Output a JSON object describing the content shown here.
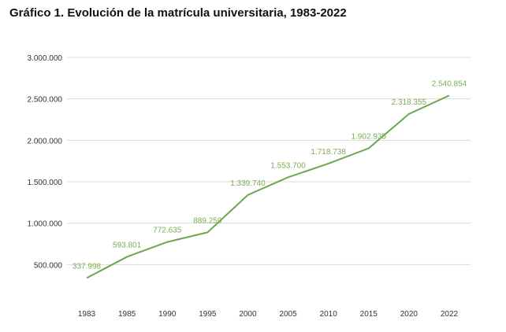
{
  "chart_data": {
    "type": "line",
    "title": "Gráfico 1. Evolución de la matrícula universitaria, 1983-2022",
    "xlabel": "",
    "ylabel": "",
    "categories": [
      "1983",
      "1985",
      "1990",
      "1995",
      "2000",
      "2005",
      "2010",
      "2015",
      "2020",
      "2022"
    ],
    "values": [
      337998,
      593801,
      772635,
      889259,
      1339740,
      1553700,
      1718738,
      1902935,
      2318355,
      2540854
    ],
    "data_labels": [
      "337.998",
      "593.801",
      "772.635",
      "889.259",
      "1.339.740",
      "1.553.700",
      "1.718.738",
      "1.902.935",
      "2.318.355",
      "2.540.854"
    ],
    "ylim": [
      0,
      3000000
    ],
    "y_ticks": [
      500000,
      1000000,
      1500000,
      2000000,
      2500000,
      3000000
    ],
    "y_tick_labels": [
      "500.000",
      "1.000.000",
      "1.500.000",
      "2.000.000",
      "2.500.000",
      "3.000.000"
    ],
    "grid": true,
    "legend": "none",
    "color": "#6aa84f"
  }
}
